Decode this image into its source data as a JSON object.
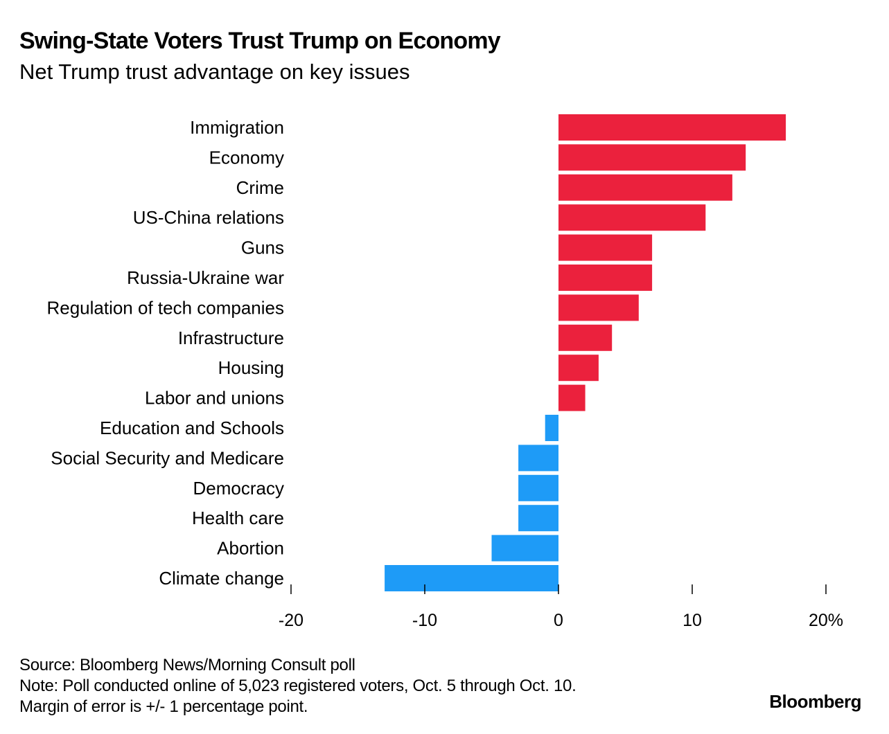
{
  "header": {
    "title": "Swing-State Voters Trust Trump on Economy",
    "subtitle": "Net Trump trust advantage on key issues"
  },
  "footer": {
    "source": "Source: Bloomberg News/Morning Consult poll",
    "note": "Note: Poll conducted online of 5,023 registered voters, Oct. 5 through Oct. 10.",
    "margin": "Margin of error is +/- 1 percentage point.",
    "brand": "Bloomberg"
  },
  "colors": {
    "positive": "#EB213D",
    "negative": "#1E9BF7"
  },
  "chart_data": {
    "type": "bar",
    "orientation": "horizontal",
    "title": "Swing-State Voters Trust Trump on Economy",
    "subtitle": "Net Trump trust advantage on key issues",
    "xlabel": "",
    "ylabel": "",
    "xlim": [
      -20,
      20
    ],
    "ticks": [
      -20,
      -10,
      0,
      10,
      20
    ],
    "tick_labels": [
      "-20",
      "-10",
      "0",
      "10",
      "20%"
    ],
    "grid": false,
    "categories": [
      "Immigration",
      "Economy",
      "Crime",
      "US-China relations",
      "Guns",
      "Russia-Ukraine war",
      "Regulation of tech companies",
      "Infrastructure",
      "Housing",
      "Labor and unions",
      "Education and Schools",
      "Social Security and Medicare",
      "Democracy",
      "Health care",
      "Abortion",
      "Climate change"
    ],
    "values": [
      17,
      14,
      13,
      11,
      7,
      7,
      6,
      4,
      3,
      2,
      -1,
      -3,
      -3,
      -3,
      -5,
      -13
    ],
    "units": "%"
  }
}
